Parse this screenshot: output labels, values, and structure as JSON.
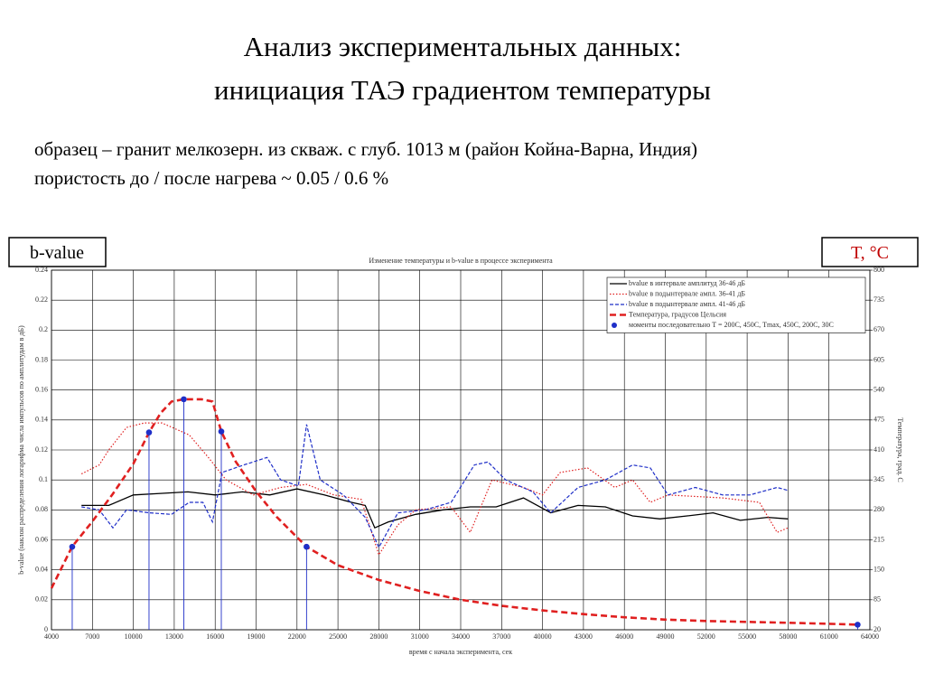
{
  "header": {
    "title_line1": "Анализ экспериментальных данных:",
    "title_line2": "инициация ТАЭ градиентом температуры",
    "subtitle_line1": "образец – гранит мелкозерн. из скваж. с глуб. 1013 м (район Койна-Варна, Индия)",
    "subtitle_line2": "пористость до / после нагрева ~ 0.05 / 0.6 %",
    "left_box": "b-value",
    "right_box": "T, °C"
  },
  "chart_data": {
    "type": "line",
    "title": "Изменение температуры и b-value в процессе эксперимента",
    "x_label": "время с начала эксперимента, сек",
    "y_label": "b-value (наклон распределения логарифма числа импульсов по амплитудам в дБ)",
    "y2_label": "Температура, град. С",
    "xlim": [
      4000,
      64000
    ],
    "xticks": [
      4000,
      7000,
      10000,
      13000,
      16000,
      19000,
      22000,
      25000,
      28000,
      31000,
      34000,
      37000,
      40000,
      43000,
      46000,
      49000,
      52000,
      55000,
      58000,
      61000,
      64000
    ],
    "ylim": [
      0,
      0.24
    ],
    "yticks": [
      0,
      0.02,
      0.04,
      0.06,
      0.08,
      0.1,
      0.12,
      0.14,
      0.16,
      0.18,
      0.2,
      0.22,
      0.24
    ],
    "y2lim": [
      20,
      800
    ],
    "y2ticks": [
      20,
      85,
      150,
      215,
      280,
      345,
      410,
      475,
      540,
      605,
      670,
      735,
      800
    ],
    "grid": true,
    "legend": "upper right",
    "series": [
      {
        "name": "bvalue в интервале амплитуд 36-46 дБ",
        "color": "#000000",
        "dash": "solid",
        "width": 1.3,
        "x": [
          6200,
          8200,
          10000,
          12000,
          14000,
          16000,
          18000,
          20000,
          22000,
          24000,
          26000,
          27000,
          27700,
          28700,
          30700,
          32700,
          34700,
          36600,
          38600,
          40600,
          42600,
          44600,
          46600,
          48600,
          50600,
          52500,
          54500,
          56500,
          58000
        ],
        "values": [
          0.083,
          0.083,
          0.09,
          0.091,
          0.092,
          0.09,
          0.092,
          0.09,
          0.094,
          0.09,
          0.085,
          0.083,
          0.068,
          0.072,
          0.077,
          0.08,
          0.082,
          0.082,
          0.088,
          0.078,
          0.083,
          0.082,
          0.076,
          0.074,
          0.076,
          0.078,
          0.073,
          0.075,
          0.074
        ]
      },
      {
        "name": "bvalue в подынтервале ампл. 36-41 дБ",
        "color": "#e02020",
        "dash": "dotted",
        "width": 1.2,
        "x": [
          6200,
          7500,
          8200,
          9500,
          10800,
          12100,
          14100,
          15500,
          16800,
          18800,
          20800,
          22700,
          24700,
          26700,
          28000,
          29400,
          30700,
          33300,
          34700,
          36300,
          38600,
          40000,
          41300,
          43300,
          45300,
          46600,
          47900,
          49200,
          53200,
          55900,
          57200,
          58000
        ],
        "values": [
          0.104,
          0.11,
          0.12,
          0.135,
          0.138,
          0.138,
          0.13,
          0.115,
          0.1,
          0.09,
          0.095,
          0.097,
          0.09,
          0.087,
          0.05,
          0.07,
          0.08,
          0.082,
          0.065,
          0.1,
          0.095,
          0.09,
          0.105,
          0.108,
          0.095,
          0.1,
          0.085,
          0.09,
          0.088,
          0.085,
          0.065,
          0.068
        ]
      },
      {
        "name": "bvalue в подынтервале ампл. 41-46 дБ",
        "color": "#1f2fc8",
        "dash": "dashed",
        "width": 1.2,
        "x": [
          6200,
          7500,
          8500,
          9500,
          11200,
          12800,
          14100,
          15100,
          15800,
          16500,
          18100,
          19800,
          20800,
          22100,
          22700,
          23700,
          25400,
          27000,
          28000,
          29400,
          31400,
          33300,
          35000,
          36000,
          37300,
          39300,
          40600,
          42600,
          44600,
          46600,
          47900,
          49200,
          51200,
          53200,
          55200,
          57200,
          58000
        ],
        "values": [
          0.082,
          0.08,
          0.068,
          0.08,
          0.078,
          0.077,
          0.085,
          0.085,
          0.072,
          0.105,
          0.11,
          0.115,
          0.1,
          0.096,
          0.137,
          0.1,
          0.09,
          0.075,
          0.055,
          0.078,
          0.08,
          0.085,
          0.11,
          0.112,
          0.1,
          0.092,
          0.078,
          0.095,
          0.1,
          0.11,
          0.108,
          0.09,
          0.095,
          0.09,
          0.09,
          0.095,
          0.093
        ]
      },
      {
        "name": "Температура, градусов Цельсия",
        "color": "#e02020",
        "dash": "bold-dashed",
        "width": 2.6,
        "axis": "y2",
        "x": [
          4000,
          5500,
          7000,
          8500,
          10000,
          11150,
          12000,
          12800,
          13700,
          15000,
          15800,
          16450,
          17500,
          19000,
          20500,
          22700,
          25000,
          28000,
          31000,
          34000,
          37000,
          40000,
          43000,
          46000,
          49000,
          52000,
          55000,
          58000,
          61000,
          63100
        ],
        "values": [
          110,
          200,
          255,
          315,
          380,
          448,
          490,
          515,
          520,
          520,
          515,
          450,
          385,
          320,
          265,
          200,
          160,
          128,
          104,
          85,
          72,
          62,
          54,
          47,
          42,
          39,
          37,
          35,
          33,
          31
        ]
      },
      {
        "name": "моменты последовательно T = 200С, 450С, Tmax, 450С, 200С, 30С",
        "color": "#1f2fc8",
        "dash": "markers",
        "width": 1,
        "axis": "y2",
        "x": [
          5520,
          11150,
          13700,
          16450,
          22700,
          63100
        ],
        "values": [
          200,
          448,
          520,
          450,
          200,
          31
        ]
      }
    ]
  }
}
